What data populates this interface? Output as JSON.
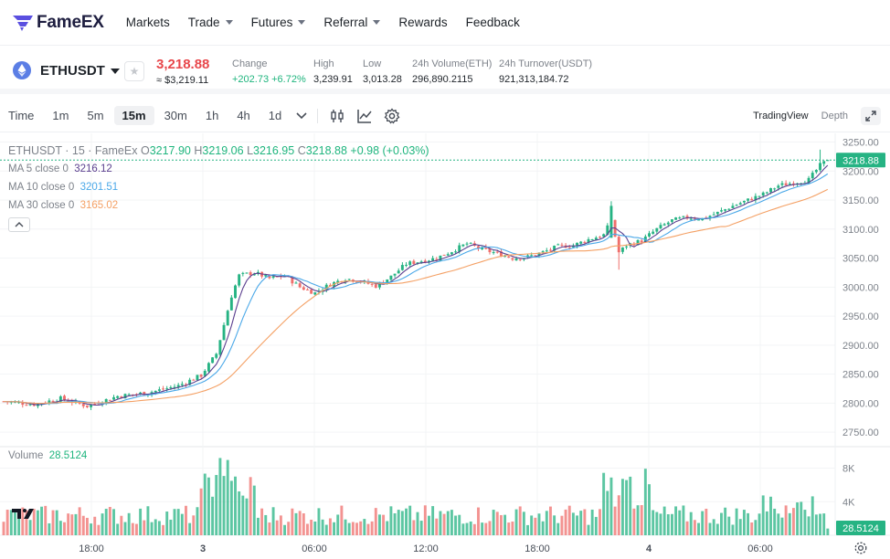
{
  "brand": {
    "name": "FameEX"
  },
  "nav": {
    "items": [
      {
        "label": "Markets",
        "dropdown": false
      },
      {
        "label": "Trade",
        "dropdown": true
      },
      {
        "label": "Futures",
        "dropdown": true
      },
      {
        "label": "Referral",
        "dropdown": true
      },
      {
        "label": "Rewards",
        "dropdown": false
      },
      {
        "label": "Feedback",
        "dropdown": false
      }
    ]
  },
  "ticker": {
    "symbol": "ETHUSDT",
    "price": "3,218.88",
    "price_usd": "≈ $3,219.11",
    "stats": [
      {
        "label": "Change",
        "value": "+202.73 +6.72%",
        "color": "green"
      },
      {
        "label": "High",
        "value": "3,239.91"
      },
      {
        "label": "Low",
        "value": "3,013.28"
      },
      {
        "label": "24h Volume(ETH)",
        "value": "296,890.2115"
      },
      {
        "label": "24h Turnover(USDT)",
        "value": "921,313,184.72"
      }
    ]
  },
  "toolbar": {
    "time_label": "Time",
    "timeframes": [
      "1m",
      "5m",
      "15m",
      "30m",
      "1h",
      "4h",
      "1d"
    ],
    "active_timeframe": "15m",
    "views": [
      "TradingView",
      "Depth"
    ],
    "active_view": "TradingView"
  },
  "legend": {
    "title": "ETHUSDT · 15 · FameEx",
    "ohlc": {
      "o_label": "O",
      "o": "3217.90",
      "h_label": "H",
      "h": "3219.06",
      "l_label": "L",
      "l": "3216.95",
      "c_label": "C",
      "c": "3218.88",
      "change": "+0.98 (+0.03%)"
    },
    "ma": [
      {
        "label": "MA 5 close 0",
        "value": "3216.12",
        "color": "#5a3e8e"
      },
      {
        "label": "MA 10 close 0",
        "value": "3201.51",
        "color": "#4aa8e8"
      },
      {
        "label": "MA 30 close 0",
        "value": "3165.02",
        "color": "#f4a064"
      }
    ],
    "volume_label": "Volume",
    "volume_value": "28.5124"
  },
  "colors": {
    "up": "#26b383",
    "down": "#ef6f6c",
    "accent_red": "#e8474b"
  },
  "chart_data": {
    "type": "candlestick",
    "price_axis": {
      "ticks": [
        3250,
        3200,
        3150,
        3100,
        3050,
        3000,
        2950,
        2900,
        2850,
        2800,
        2750
      ],
      "min": 2725,
      "max": 3265
    },
    "volume_axis": {
      "ticks": [
        "8K",
        "4K"
      ]
    },
    "time_axis": {
      "labels": [
        "18:00",
        "3",
        "06:00",
        "12:00",
        "18:00",
        "4",
        "06:00"
      ]
    },
    "last_price": "3218.88",
    "last_volume": "28.5124",
    "close_series_approx": [
      [
        0,
        2803
      ],
      [
        8,
        2798
      ],
      [
        15,
        2808
      ],
      [
        22,
        2795
      ],
      [
        30,
        2812
      ],
      [
        38,
        2818
      ],
      [
        46,
        2830
      ],
      [
        52,
        2848
      ],
      [
        56,
        2885
      ],
      [
        58,
        2935
      ],
      [
        60,
        2985
      ],
      [
        62,
        3020
      ],
      [
        66,
        3025
      ],
      [
        70,
        3015
      ],
      [
        74,
        3020
      ],
      [
        78,
        3000
      ],
      [
        82,
        2990
      ],
      [
        86,
        3005
      ],
      [
        90,
        3015
      ],
      [
        94,
        3010
      ],
      [
        98,
        3002
      ],
      [
        102,
        3018
      ],
      [
        106,
        3040
      ],
      [
        110,
        3045
      ],
      [
        114,
        3050
      ],
      [
        118,
        3062
      ],
      [
        122,
        3075
      ],
      [
        126,
        3065
      ],
      [
        130,
        3058
      ],
      [
        134,
        3050
      ],
      [
        138,
        3052
      ],
      [
        142,
        3060
      ],
      [
        146,
        3070
      ],
      [
        150,
        3072
      ],
      [
        154,
        3082
      ],
      [
        158,
        3090
      ],
      [
        160,
        3115
      ],
      [
        162,
        3060
      ],
      [
        164,
        3072
      ],
      [
        168,
        3080
      ],
      [
        172,
        3100
      ],
      [
        176,
        3115
      ],
      [
        180,
        3120
      ],
      [
        184,
        3118
      ],
      [
        188,
        3128
      ],
      [
        192,
        3140
      ],
      [
        196,
        3150
      ],
      [
        200,
        3160
      ],
      [
        204,
        3175
      ],
      [
        208,
        3180
      ],
      [
        212,
        3185
      ],
      [
        215,
        3210
      ],
      [
        217,
        3218.88
      ]
    ]
  }
}
